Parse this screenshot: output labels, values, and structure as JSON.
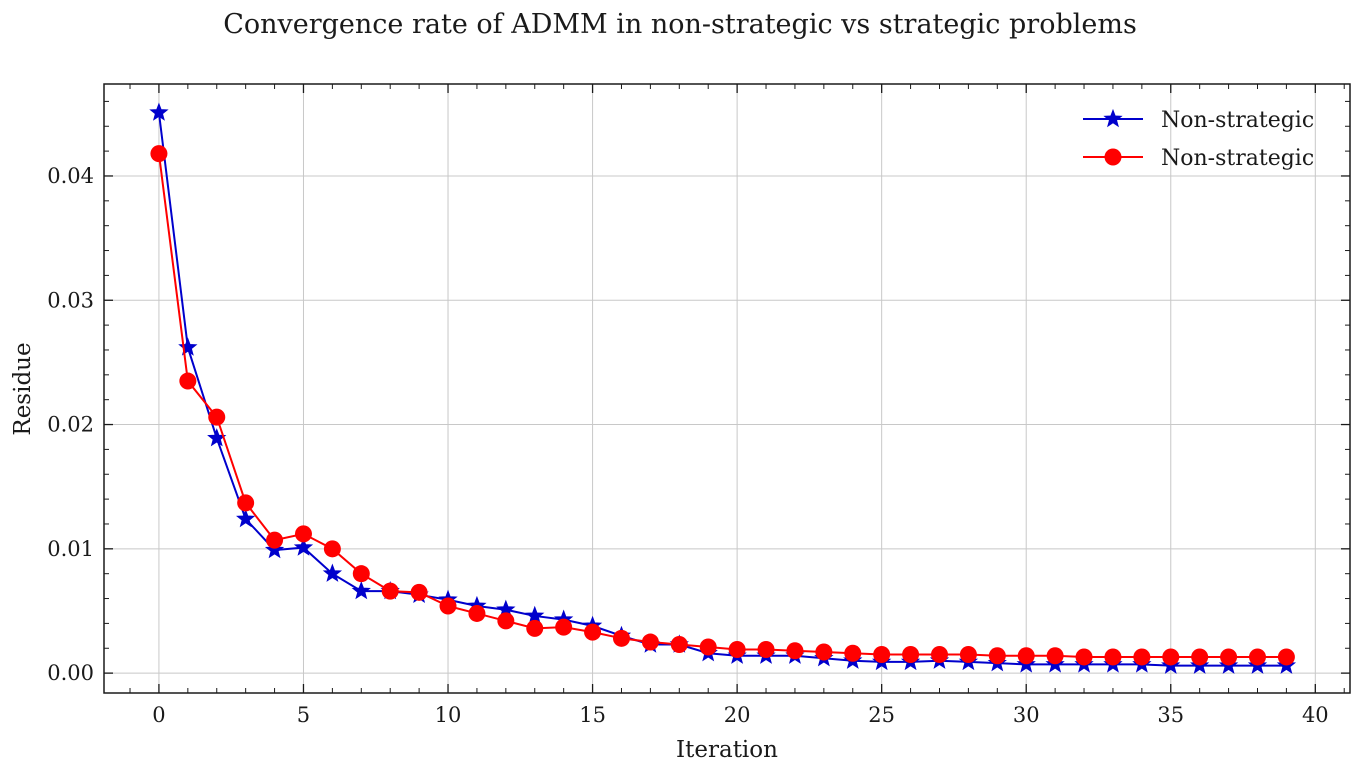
{
  "chart_data": {
    "type": "line",
    "title": "Convergence rate of ADMM in non-strategic vs strategic problems",
    "xlabel": "Iteration",
    "ylabel": "Residue",
    "xlim": [
      -1.9,
      41.2
    ],
    "ylim": [
      -0.0016,
      0.0474
    ],
    "xticks": [
      0,
      5,
      10,
      15,
      20,
      25,
      30,
      35,
      40
    ],
    "xtick_labels": [
      "0",
      "5",
      "10",
      "15",
      "20",
      "25",
      "30",
      "35",
      "40"
    ],
    "yticks": [
      0.0,
      0.01,
      0.02,
      0.03,
      0.04
    ],
    "ytick_labels": [
      "0.00",
      "0.01",
      "0.02",
      "0.03",
      "0.04"
    ],
    "grid": true,
    "legend_position": "top-right",
    "x": [
      0,
      1,
      2,
      3,
      4,
      5,
      6,
      7,
      8,
      9,
      10,
      11,
      12,
      13,
      14,
      15,
      16,
      17,
      18,
      19,
      20,
      21,
      22,
      23,
      24,
      25,
      26,
      27,
      28,
      29,
      30,
      31,
      32,
      33,
      34,
      35,
      36,
      37,
      38,
      39
    ],
    "series": [
      {
        "name": "Non-strategic",
        "color": "#0000cc",
        "marker": "star",
        "values": [
          0.0451,
          0.0262,
          0.0189,
          0.0124,
          0.0099,
          0.0101,
          0.008,
          0.0066,
          0.0066,
          0.0063,
          0.0059,
          0.0054,
          0.0051,
          0.0046,
          0.0043,
          0.0038,
          0.003,
          0.0023,
          0.0023,
          0.0016,
          0.0014,
          0.0014,
          0.0014,
          0.0012,
          0.001,
          0.0009,
          0.0009,
          0.001,
          0.0009,
          0.0008,
          0.0007,
          0.0007,
          0.0007,
          0.0007,
          0.0007,
          0.0006,
          0.0006,
          0.0006,
          0.0006,
          0.0006
        ]
      },
      {
        "name": "Non-strategic",
        "color": "#ff0000",
        "marker": "circle",
        "values": [
          0.0418,
          0.0235,
          0.0206,
          0.0137,
          0.0107,
          0.0112,
          0.01,
          0.008,
          0.0066,
          0.0065,
          0.0054,
          0.0048,
          0.0042,
          0.0036,
          0.0037,
          0.0033,
          0.0028,
          0.0025,
          0.0023,
          0.0021,
          0.0019,
          0.0019,
          0.0018,
          0.0017,
          0.0016,
          0.0015,
          0.0015,
          0.0015,
          0.0015,
          0.0014,
          0.0014,
          0.0014,
          0.0013,
          0.0013,
          0.0013,
          0.0013,
          0.0013,
          0.0013,
          0.0013,
          0.0013
        ]
      }
    ]
  }
}
